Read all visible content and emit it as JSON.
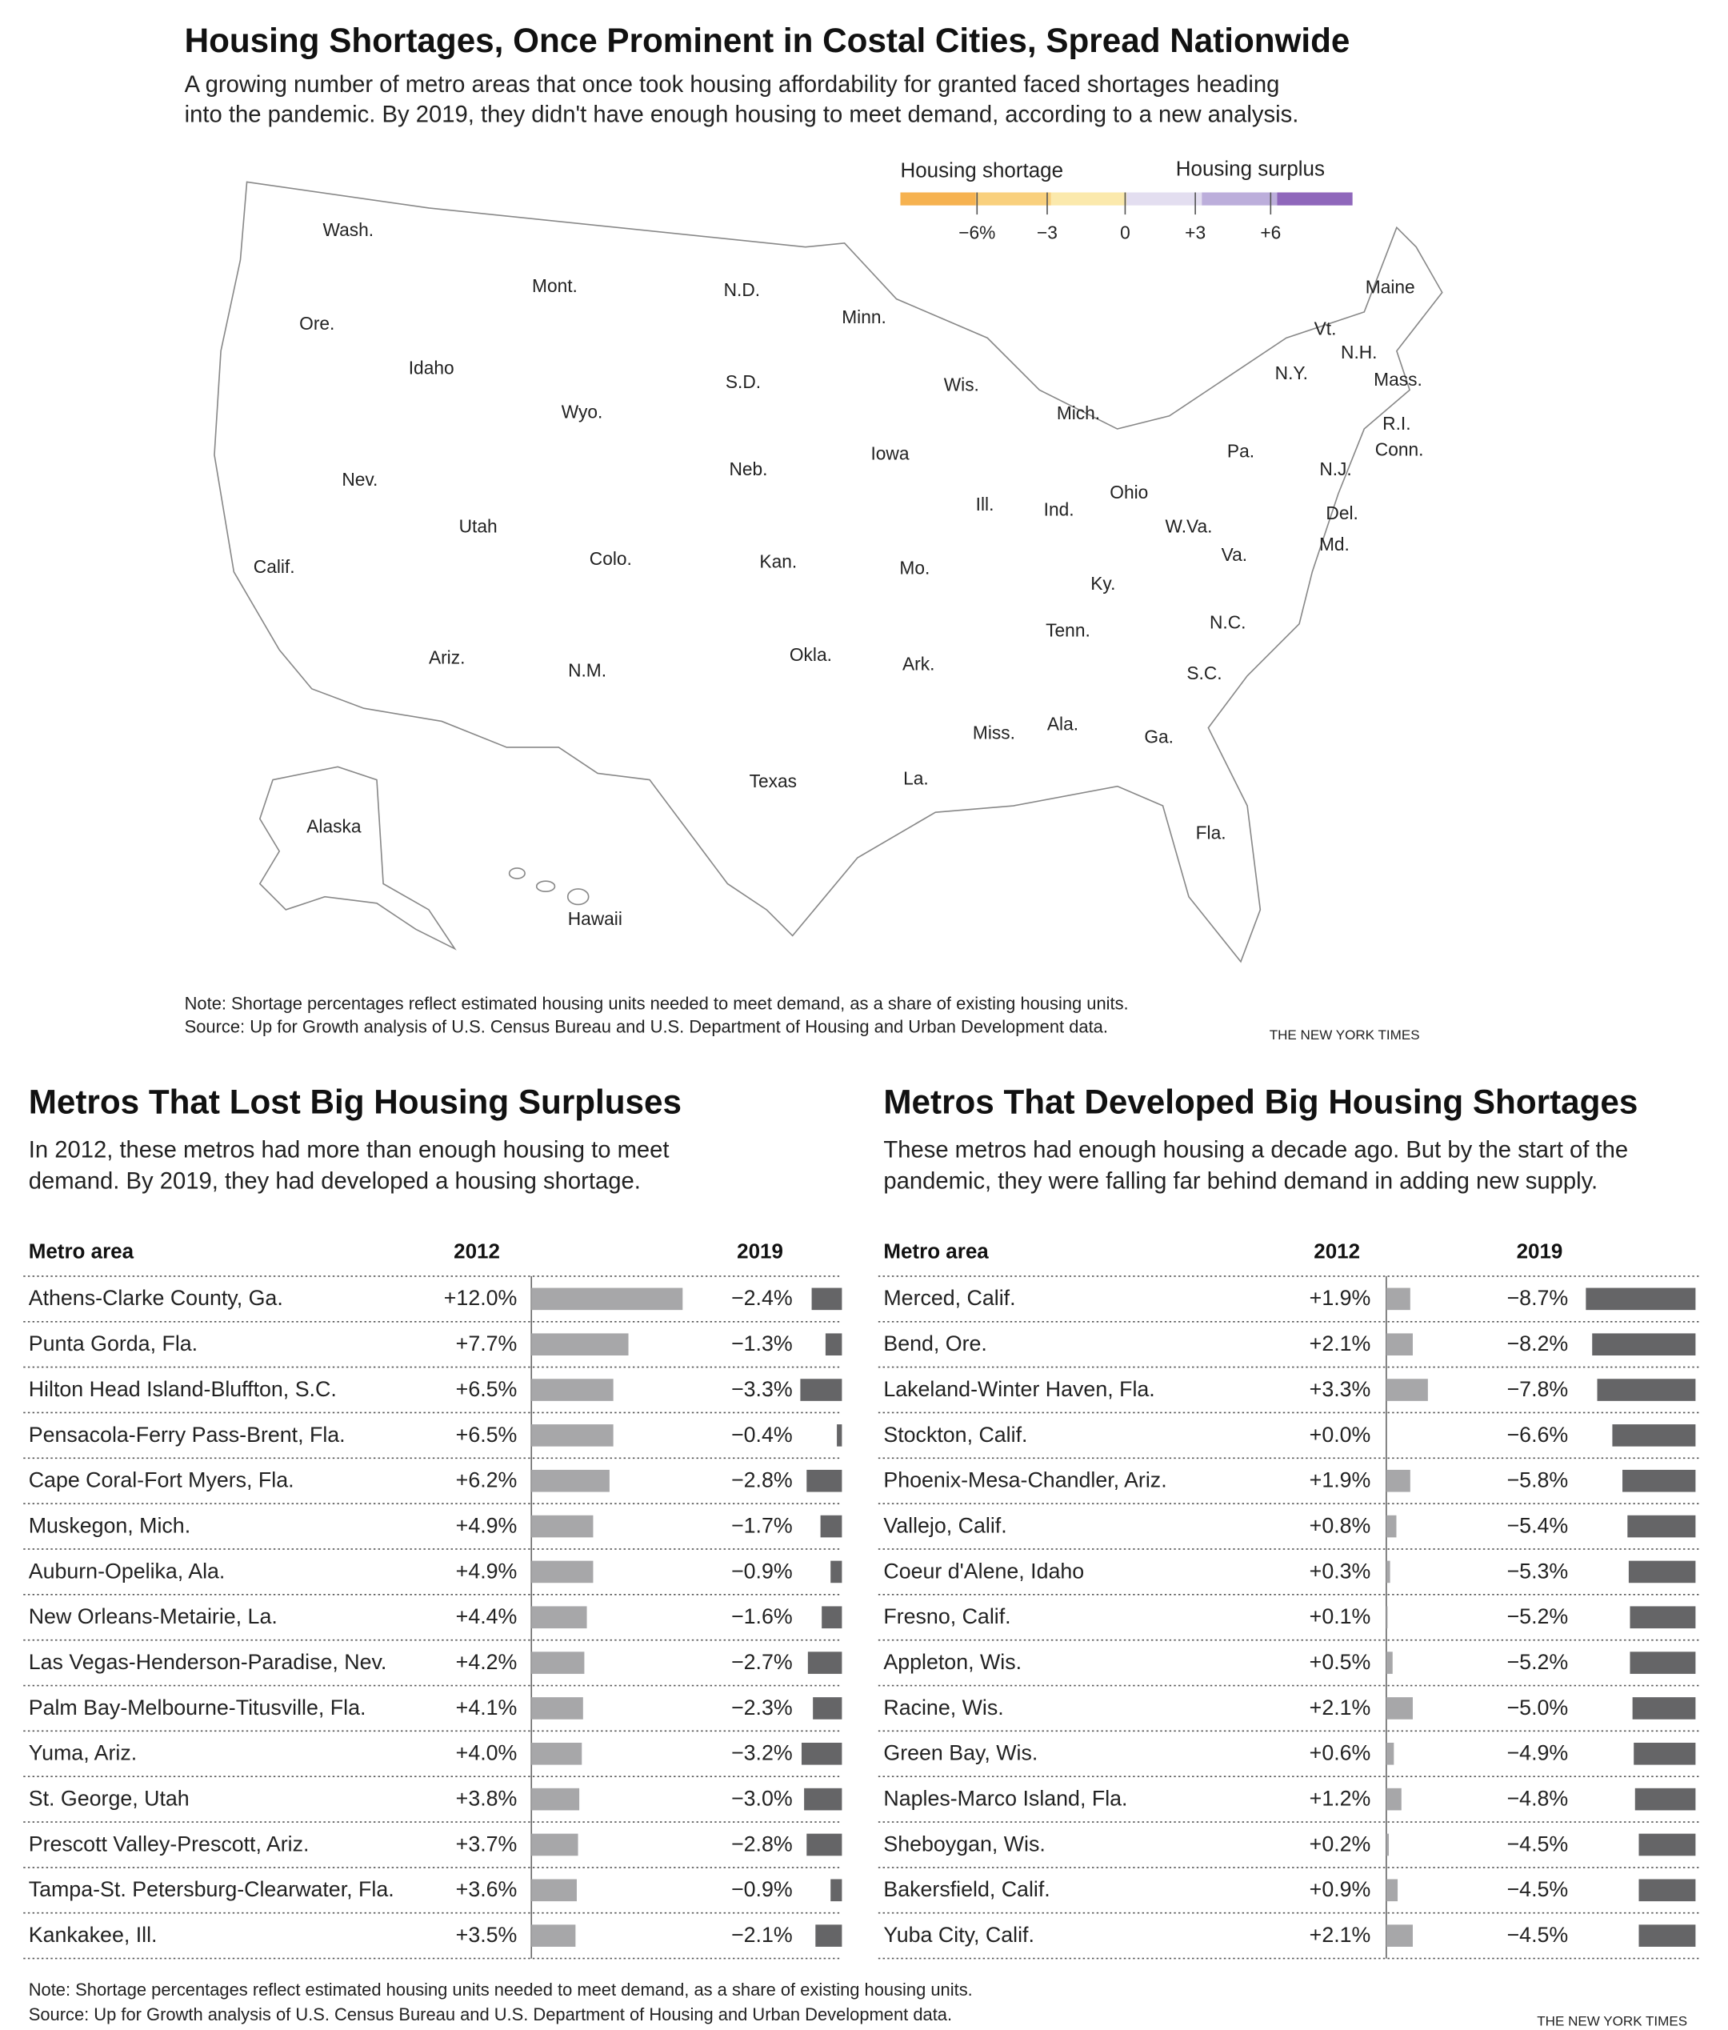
{
  "header": {
    "title": "Housing Shortages, Once Prominent in Costal Cities, Spread Nationwide",
    "subtitle": [
      "A growing number of metro areas that once took housing affordability for granted faced shortages heading",
      "into the pandemic. By 2019, they didn't have enough housing to meet demand, according to a new analysis."
    ]
  },
  "map": {
    "legend": {
      "shortage_label": "Housing shortage",
      "surplus_label": "Housing surplus",
      "ticks": [
        "−6%",
        "−3",
        "0",
        "+3",
        "+6"
      ],
      "colors": [
        "#f6b250",
        "#f9d07d",
        "#fbe9ac",
        "#e3def0",
        "#bcaedb",
        "#8f67bb"
      ]
    },
    "state_labels": [
      "Wash.",
      "Mont.",
      "N.D.",
      "Minn.",
      "Maine",
      "Ore.",
      "Idaho",
      "S.D.",
      "Wis.",
      "Vt.",
      "N.H.",
      "N.Y.",
      "Mass.",
      "Wyo.",
      "Mich.",
      "R.I.",
      "Conn.",
      "Nev.",
      "Iowa",
      "Pa.",
      "N.J.",
      "Neb.",
      "Ohio",
      "Ill.",
      "Ind.",
      "Del.",
      "Utah",
      "W.Va.",
      "Md.",
      "Colo.",
      "Kan.",
      "Mo.",
      "Va.",
      "Calif.",
      "Ky.",
      "N.C.",
      "Tenn.",
      "Okla.",
      "Ark.",
      "S.C.",
      "Ariz.",
      "N.M.",
      "Miss.",
      "Ala.",
      "Ga.",
      "Texas",
      "La.",
      "Fla.",
      "Alaska",
      "Hawaii"
    ],
    "note": "Note: Shortage percentages reflect estimated housing units needed to meet demand, as a share of existing housing units.",
    "source": "Source: Up for Growth analysis of U.S. Census Bureau and U.S. Department of Housing and Urban Development data.",
    "credit": "THE NEW YORK TIMES"
  },
  "tables": [
    {
      "title": "Metros That Lost Big Housing Surpluses",
      "subtitle": [
        "In 2012, these metros had more than enough housing to meet",
        "demand. By 2019, they had developed a housing shortage."
      ],
      "columns": [
        "Metro area",
        "2012",
        "2019"
      ],
      "rows": [
        {
          "metro": "Athens-Clarke County, Ga.",
          "y2012": {
            "value": 12.0,
            "label": "+12.0%"
          },
          "y2019": {
            "value": -2.4,
            "label": "−2.4%"
          }
        },
        {
          "metro": "Punta Gorda, Fla.",
          "y2012": {
            "value": 7.7,
            "label": "+7.7%"
          },
          "y2019": {
            "value": -1.3,
            "label": "−1.3%"
          }
        },
        {
          "metro": "Hilton Head Island-Bluffton, S.C.",
          "y2012": {
            "value": 6.5,
            "label": "+6.5%"
          },
          "y2019": {
            "value": -3.3,
            "label": "−3.3%"
          }
        },
        {
          "metro": "Pensacola-Ferry Pass-Brent, Fla.",
          "y2012": {
            "value": 6.5,
            "label": "+6.5%"
          },
          "y2019": {
            "value": -0.4,
            "label": "−0.4%"
          }
        },
        {
          "metro": "Cape Coral-Fort Myers, Fla.",
          "y2012": {
            "value": 6.2,
            "label": "+6.2%"
          },
          "y2019": {
            "value": -2.8,
            "label": "−2.8%"
          }
        },
        {
          "metro": "Muskegon, Mich.",
          "y2012": {
            "value": 4.9,
            "label": "+4.9%"
          },
          "y2019": {
            "value": -1.7,
            "label": "−1.7%"
          }
        },
        {
          "metro": "Auburn-Opelika, Ala.",
          "y2012": {
            "value": 4.9,
            "label": "+4.9%"
          },
          "y2019": {
            "value": -0.9,
            "label": "−0.9%"
          }
        },
        {
          "metro": "New Orleans-Metairie, La.",
          "y2012": {
            "value": 4.4,
            "label": "+4.4%"
          },
          "y2019": {
            "value": -1.6,
            "label": "−1.6%"
          }
        },
        {
          "metro": "Las Vegas-Henderson-Paradise, Nev.",
          "y2012": {
            "value": 4.2,
            "label": "+4.2%"
          },
          "y2019": {
            "value": -2.7,
            "label": "−2.7%"
          }
        },
        {
          "metro": "Palm Bay-Melbourne-Titusville, Fla.",
          "y2012": {
            "value": 4.1,
            "label": "+4.1%"
          },
          "y2019": {
            "value": -2.3,
            "label": "−2.3%"
          }
        },
        {
          "metro": "Yuma, Ariz.",
          "y2012": {
            "value": 4.0,
            "label": "+4.0%"
          },
          "y2019": {
            "value": -3.2,
            "label": "−3.2%"
          }
        },
        {
          "metro": "St. George, Utah",
          "y2012": {
            "value": 3.8,
            "label": "+3.8%"
          },
          "y2019": {
            "value": -3.0,
            "label": "−3.0%"
          }
        },
        {
          "metro": "Prescott Valley-Prescott, Ariz.",
          "y2012": {
            "value": 3.7,
            "label": "+3.7%"
          },
          "y2019": {
            "value": -2.8,
            "label": "−2.8%"
          }
        },
        {
          "metro": "Tampa-St. Petersburg-Clearwater, Fla.",
          "y2012": {
            "value": 3.6,
            "label": "+3.6%"
          },
          "y2019": {
            "value": -0.9,
            "label": "−0.9%"
          }
        },
        {
          "metro": "Kankakee, Ill.",
          "y2012": {
            "value": 3.5,
            "label": "+3.5%"
          },
          "y2019": {
            "value": -2.1,
            "label": "−2.1%"
          }
        }
      ]
    },
    {
      "title": "Metros That Developed Big Housing Shortages",
      "subtitle": [
        "These metros had enough housing a decade ago. But by the start of the",
        "pandemic, they were falling far behind demand in adding new supply."
      ],
      "columns": [
        "Metro area",
        "2012",
        "2019"
      ],
      "rows": [
        {
          "metro": "Merced, Calif.",
          "y2012": {
            "value": 1.9,
            "label": "+1.9%"
          },
          "y2019": {
            "value": -8.7,
            "label": "−8.7%"
          }
        },
        {
          "metro": "Bend, Ore.",
          "y2012": {
            "value": 2.1,
            "label": "+2.1%"
          },
          "y2019": {
            "value": -8.2,
            "label": "−8.2%"
          }
        },
        {
          "metro": "Lakeland-Winter Haven, Fla.",
          "y2012": {
            "value": 3.3,
            "label": "+3.3%"
          },
          "y2019": {
            "value": -7.8,
            "label": "−7.8%"
          }
        },
        {
          "metro": "Stockton, Calif.",
          "y2012": {
            "value": 0.0,
            "label": "+0.0%"
          },
          "y2019": {
            "value": -6.6,
            "label": "−6.6%"
          }
        },
        {
          "metro": "Phoenix-Mesa-Chandler, Ariz.",
          "y2012": {
            "value": 1.9,
            "label": "+1.9%"
          },
          "y2019": {
            "value": -5.8,
            "label": "−5.8%"
          }
        },
        {
          "metro": "Vallejo, Calif.",
          "y2012": {
            "value": 0.8,
            "label": "+0.8%"
          },
          "y2019": {
            "value": -5.4,
            "label": "−5.4%"
          }
        },
        {
          "metro": "Coeur d'Alene, Idaho",
          "y2012": {
            "value": 0.3,
            "label": "+0.3%"
          },
          "y2019": {
            "value": -5.3,
            "label": "−5.3%"
          }
        },
        {
          "metro": "Fresno, Calif.",
          "y2012": {
            "value": 0.1,
            "label": "+0.1%"
          },
          "y2019": {
            "value": -5.2,
            "label": "−5.2%"
          }
        },
        {
          "metro": "Appleton, Wis.",
          "y2012": {
            "value": 0.5,
            "label": "+0.5%"
          },
          "y2019": {
            "value": -5.2,
            "label": "−5.2%"
          }
        },
        {
          "metro": "Racine, Wis.",
          "y2012": {
            "value": 2.1,
            "label": "+2.1%"
          },
          "y2019": {
            "value": -5.0,
            "label": "−5.0%"
          }
        },
        {
          "metro": "Green Bay, Wis.",
          "y2012": {
            "value": 0.6,
            "label": "+0.6%"
          },
          "y2019": {
            "value": -4.9,
            "label": "−4.9%"
          }
        },
        {
          "metro": "Naples-Marco Island, Fla.",
          "y2012": {
            "value": 1.2,
            "label": "+1.2%"
          },
          "y2019": {
            "value": -4.8,
            "label": "−4.8%"
          }
        },
        {
          "metro": "Sheboygan, Wis.",
          "y2012": {
            "value": 0.2,
            "label": "+0.2%"
          },
          "y2019": {
            "value": -4.5,
            "label": "−4.5%"
          }
        },
        {
          "metro": "Bakersfield, Calif.",
          "y2012": {
            "value": 0.9,
            "label": "+0.9%"
          },
          "y2019": {
            "value": -4.5,
            "label": "−4.5%"
          }
        },
        {
          "metro": "Yuba City, Calif.",
          "y2012": {
            "value": 2.1,
            "label": "+2.1%"
          },
          "y2019": {
            "value": -4.5,
            "label": "−4.5%"
          }
        }
      ]
    }
  ],
  "footer": {
    "note": "Note: Shortage percentages reflect estimated housing units needed to meet demand, as a share of existing housing units.",
    "source": "Source: Up for Growth analysis of U.S. Census Bureau and U.S. Department of Housing and Urban Development data.",
    "credit": "THE NEW YORK TIMES"
  }
}
